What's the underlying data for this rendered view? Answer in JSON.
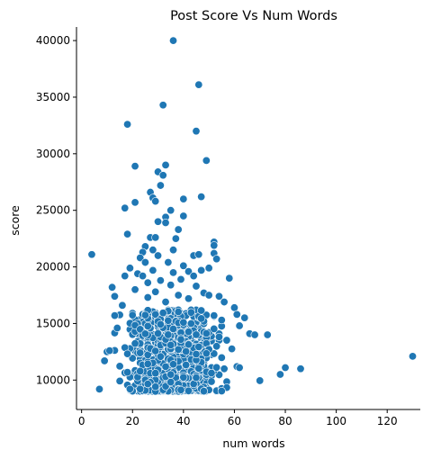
{
  "chart_data": {
    "type": "scatter",
    "title": "Post Score Vs Num Words",
    "xlabel": "num words",
    "ylabel": "score",
    "xlim": [
      -2,
      133
    ],
    "ylim": [
      7400,
      41200
    ],
    "xticks": [
      0,
      20,
      40,
      60,
      80,
      100,
      120
    ],
    "yticks": [
      10000,
      15000,
      20000,
      25000,
      30000,
      35000,
      40000
    ],
    "grid": false,
    "legend": "none",
    "point_color": "#1f77b4",
    "dense_cluster": {
      "count": 900,
      "x_range": [
        8,
        70
      ],
      "y_floor": 9000,
      "note": "dense mass of points between about 9000 and 16000 score"
    },
    "points": [
      [
        36,
        40000
      ],
      [
        46,
        36100
      ],
      [
        32,
        34300
      ],
      [
        18,
        32600
      ],
      [
        45,
        32000
      ],
      [
        49,
        29400
      ],
      [
        21,
        28900
      ],
      [
        33,
        29000
      ],
      [
        30,
        28400
      ],
      [
        32,
        28100
      ],
      [
        31,
        27200
      ],
      [
        27,
        26600
      ],
      [
        28,
        26100
      ],
      [
        47,
        26200
      ],
      [
        40,
        26000
      ],
      [
        29,
        25800
      ],
      [
        21,
        25700
      ],
      [
        17,
        25200
      ],
      [
        35,
        25000
      ],
      [
        40,
        24500
      ],
      [
        33,
        24400
      ],
      [
        30,
        24000
      ],
      [
        33,
        23900
      ],
      [
        38,
        23300
      ],
      [
        18,
        22900
      ],
      [
        27,
        22600
      ],
      [
        29,
        22600
      ],
      [
        37,
        22500
      ],
      [
        52,
        22200
      ],
      [
        52,
        21900
      ],
      [
        25,
        21800
      ],
      [
        28,
        21500
      ],
      [
        24,
        21300
      ],
      [
        36,
        21500
      ],
      [
        4,
        21100
      ],
      [
        30,
        21000
      ],
      [
        44,
        21000
      ],
      [
        46,
        21100
      ],
      [
        52,
        21200
      ],
      [
        23,
        20800
      ],
      [
        34,
        20400
      ],
      [
        53,
        20700
      ],
      [
        25,
        20400
      ],
      [
        40,
        20100
      ],
      [
        19,
        19900
      ],
      [
        28,
        19700
      ],
      [
        47,
        19700
      ],
      [
        50,
        19900
      ],
      [
        42,
        19600
      ],
      [
        22,
        19400
      ],
      [
        36,
        19500
      ],
      [
        17,
        19200
      ],
      [
        24,
        19200
      ],
      [
        44,
        19200
      ],
      [
        58,
        19000
      ],
      [
        31,
        18800
      ],
      [
        39,
        18900
      ],
      [
        26,
        18600
      ],
      [
        35,
        18400
      ],
      [
        45,
        18300
      ],
      [
        12,
        18200
      ],
      [
        21,
        18000
      ],
      [
        29,
        17800
      ],
      [
        48,
        17700
      ],
      [
        50,
        17500
      ],
      [
        54,
        17400
      ],
      [
        13,
        17400
      ],
      [
        38,
        17500
      ],
      [
        42,
        17200
      ],
      [
        26,
        17300
      ],
      [
        56,
        16900
      ],
      [
        33,
        16900
      ],
      [
        16,
        16600
      ],
      [
        60,
        16400
      ],
      [
        61,
        15800
      ],
      [
        64,
        15500
      ],
      [
        13,
        15700
      ],
      [
        55,
        15300
      ],
      [
        62,
        14800
      ],
      [
        66,
        14100
      ],
      [
        68,
        14000
      ],
      [
        73,
        14000
      ],
      [
        14,
        14600
      ],
      [
        10,
        12500
      ],
      [
        11,
        12600
      ],
      [
        78,
        10500
      ],
      [
        80,
        11100
      ],
      [
        86,
        11000
      ],
      [
        70,
        9950
      ],
      [
        61,
        11200
      ],
      [
        62,
        11100
      ],
      [
        7,
        9200
      ],
      [
        9,
        11700
      ],
      [
        130,
        12100
      ]
    ]
  }
}
